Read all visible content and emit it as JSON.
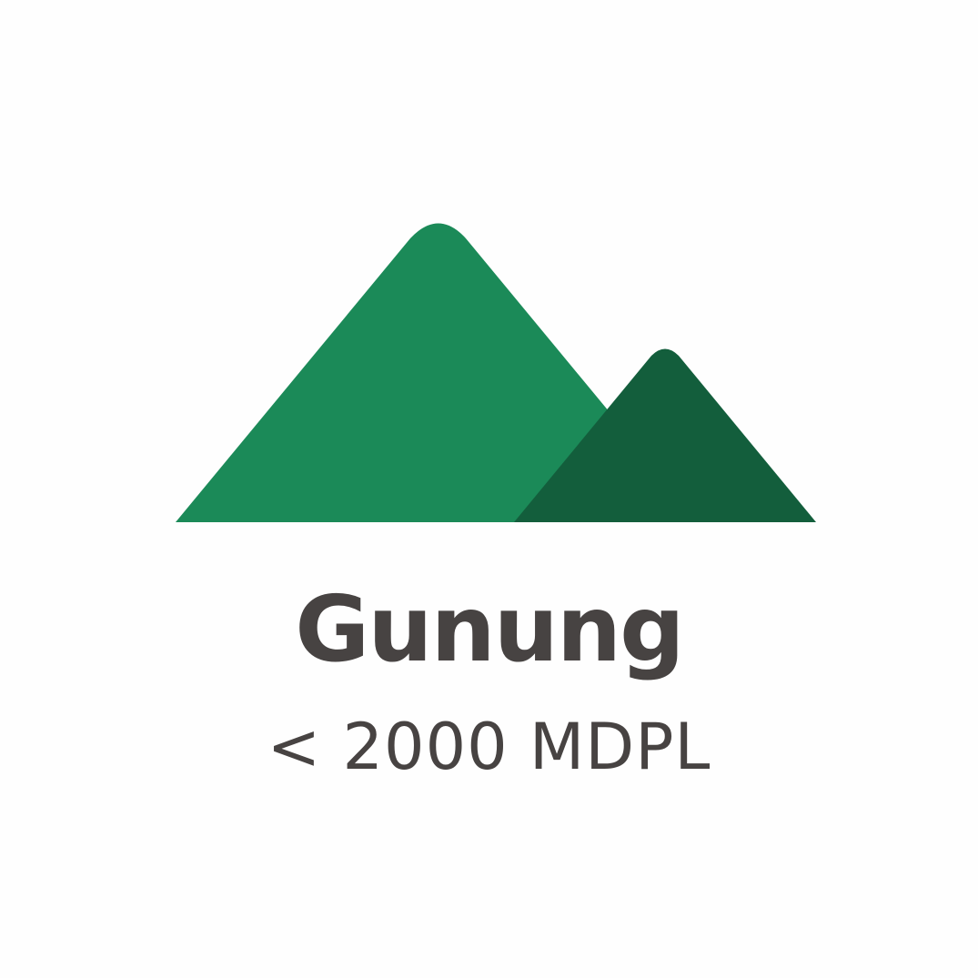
{
  "icon": {
    "name": "mountain-icon",
    "big_peak_color": "#1b8a58",
    "small_peak_color": "#135e3c"
  },
  "text": {
    "title": "Gunung",
    "subtitle": "< 2000 MDPL",
    "color": "#474342"
  }
}
